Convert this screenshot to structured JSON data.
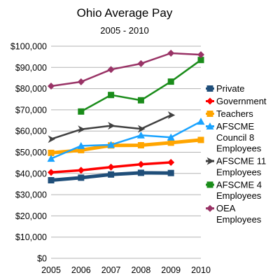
{
  "chart_data": {
    "type": "line",
    "title": "Ohio Average Pay",
    "subtitle": "2005 - 2010",
    "xlabel": "",
    "ylabel": "",
    "x": [
      "2005",
      "2006",
      "2007",
      "2008",
      "2009",
      "2010"
    ],
    "ylim": [
      0,
      100000
    ],
    "y_ticks": [
      {
        "value": 0,
        "label": "$0"
      },
      {
        "value": 10000,
        "label": "$10,000"
      },
      {
        "value": 20000,
        "label": "$20,000"
      },
      {
        "value": 30000,
        "label": "$30,000"
      },
      {
        "value": 40000,
        "label": "$40,000"
      },
      {
        "value": 50000,
        "label": "$50,000"
      },
      {
        "value": 60000,
        "label": "$60,000"
      },
      {
        "value": 70000,
        "label": "$70,000"
      },
      {
        "value": 80000,
        "label": "$80,000"
      },
      {
        "value": 90000,
        "label": "$90,000"
      },
      {
        "value": 100000,
        "label": "$100,000"
      }
    ],
    "grid": "horizontal",
    "legend_position": "right",
    "series": [
      {
        "name": "Private",
        "color": "#1f4e79",
        "marker": "square",
        "width": 5,
        "values": [
          36800,
          38000,
          39500,
          40300,
          40200,
          null
        ]
      },
      {
        "name": "Government",
        "color": "#ff0000",
        "marker": "diamond",
        "width": 3.5,
        "values": [
          40500,
          41500,
          43000,
          44300,
          45200,
          null
        ]
      },
      {
        "name": "Teachers",
        "color": "#ffa500",
        "marker": "square",
        "width": 5,
        "values": [
          49700,
          51000,
          53200,
          53300,
          54500,
          55800
        ]
      },
      {
        "name": "AFSCME Council 8 Employees",
        "color": "#1aa3ff",
        "marker": "triangle",
        "width": 2.5,
        "values": [
          47000,
          53000,
          53500,
          58000,
          57000,
          64500
        ]
      },
      {
        "name": "AFSCME 11 Employees",
        "color": "#404040",
        "marker": "arrow",
        "width": 2.5,
        "values": [
          56200,
          60800,
          62500,
          61000,
          67500,
          null
        ]
      },
      {
        "name": "AFSCME 4 Employees",
        "color": "#1a8c1a",
        "marker": "square",
        "width": 2.5,
        "values": [
          null,
          69200,
          77000,
          74500,
          83300,
          93500
        ]
      },
      {
        "name": "OEA Employees",
        "color": "#993366",
        "marker": "diamond",
        "width": 2.5,
        "values": [
          81200,
          83200,
          89000,
          91800,
          96700,
          96000
        ]
      }
    ]
  },
  "legend": {
    "items": [
      {
        "lines": [
          "Private"
        ]
      },
      {
        "lines": [
          "Government"
        ]
      },
      {
        "lines": [
          "Teachers"
        ]
      },
      {
        "lines": [
          "AFSCME",
          "Council 8",
          "Employees"
        ]
      },
      {
        "lines": [
          "AFSCME 11",
          "Employees"
        ]
      },
      {
        "lines": [
          "AFSCME 4",
          "Employees"
        ]
      },
      {
        "lines": [
          "OEA",
          "Employees"
        ]
      }
    ]
  }
}
